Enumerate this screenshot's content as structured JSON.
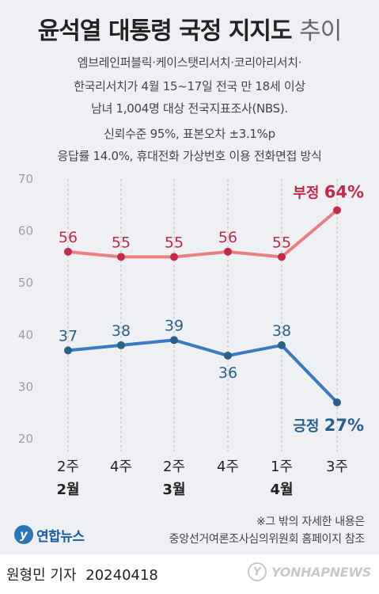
{
  "header": {
    "title_main": "윤석열 대통령 국정 지지도",
    "title_light": "추이",
    "sub_lines": [
      "엠브레인퍼블릭·케이스탯리서치·코리아리서치·",
      "한국리서치가 4월 15~17일 전국 만 18세 이상",
      "남녀 1,004명 대상 전국지표조사(NBS).",
      "신뢰수준 95%, 표본오차 ±3.1%p",
      "응답률 14.0%, 휴대전화 가상번호 이용 전화면접 방식"
    ]
  },
  "chart_data": {
    "type": "line",
    "categories": [
      "2주",
      "4주",
      "2주",
      "4주",
      "1주",
      "3주"
    ],
    "month_labels": [
      {
        "label": "2월",
        "span": [
          0,
          1
        ]
      },
      {
        "label": "3월",
        "span": [
          2,
          3
        ]
      },
      {
        "label": "4월",
        "span": [
          4,
          5
        ]
      }
    ],
    "y_ticks": [
      "70",
      "60",
      "50",
      "40",
      "30",
      "20"
    ],
    "ylim": [
      20,
      70
    ],
    "grid": "vertical dashed",
    "series": [
      {
        "name": "부정",
        "color": "#e88080",
        "label_color": "#c22a4a",
        "values": [
          56,
          55,
          55,
          56,
          55,
          64
        ],
        "labels": [
          "56",
          "55",
          "55",
          "56",
          "55",
          "64"
        ],
        "last_label": "64%"
      },
      {
        "name": "긍정",
        "color": "#3d78c4",
        "label_color": "#2a5f8a",
        "values": [
          37,
          38,
          39,
          36,
          38,
          27
        ],
        "labels": [
          "37",
          "38",
          "39",
          "36",
          "38",
          "27"
        ],
        "last_label": "27%"
      }
    ]
  },
  "footnote": {
    "line1": "※그 밖의 자세한 내용은",
    "line2": "중앙선거여론조사심의위원회 홈페이지 참조"
  },
  "logo": {
    "mark": "y",
    "text": "연합뉴스"
  },
  "byline": {
    "author": "원형민 기자",
    "date": "20240418"
  },
  "watermark": {
    "mark": "Y",
    "text": "YONHAPNEWS"
  },
  "colors": {
    "background": "#eef0f3",
    "negative": "#e88080",
    "positive": "#3d78c4"
  }
}
